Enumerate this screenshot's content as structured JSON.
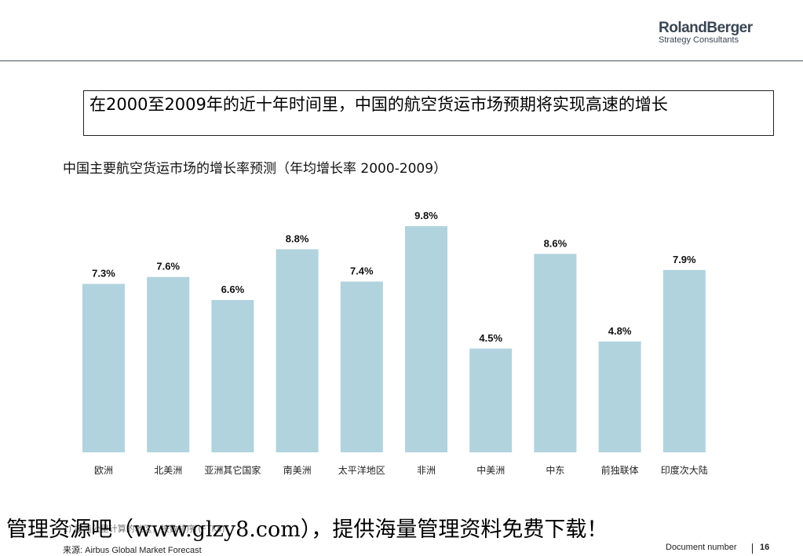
{
  "logo": {
    "main": "RolandBerger",
    "sub": "Strategy Consultants"
  },
  "headline": "在2000至2009年的近十年时间里，中国的航空货运市场预期将实现高速的增长",
  "subtitle": "中国主要航空货运市场的增长率预测（年均增长率 2000-2009）",
  "chart_data": {
    "type": "bar",
    "categories": [
      "欧洲",
      "北美洲",
      "亚洲其它国家",
      "南美洲",
      "太平洋地区",
      "非洲",
      "中美洲",
      "中东",
      "前独联体",
      "印度次大陆"
    ],
    "values": [
      7.3,
      7.6,
      6.6,
      8.8,
      7.4,
      9.8,
      4.5,
      8.6,
      4.8,
      7.9
    ],
    "value_labels": [
      "7.3%",
      "7.6%",
      "6.6%",
      "8.8%",
      "7.4%",
      "9.8%",
      "4.5%",
      "8.6%",
      "4.8%",
      "7.9%"
    ],
    "unit": "%",
    "title": "",
    "xlabel": "",
    "ylabel": "",
    "ylim": [
      0,
      10.5
    ],
    "grid": false,
    "legend": "none",
    "bar_color": "#b1d3de"
  },
  "footer": {
    "watermark": "管理资源吧（www.glzy8.com），提供海量管理资料免费下载！",
    "note": "1) 按吨公里计算的地区，按数排序 (FTKs)",
    "source": "来源: Airbus Global Market Forecast",
    "doc_number": "Document number",
    "page": "16"
  }
}
